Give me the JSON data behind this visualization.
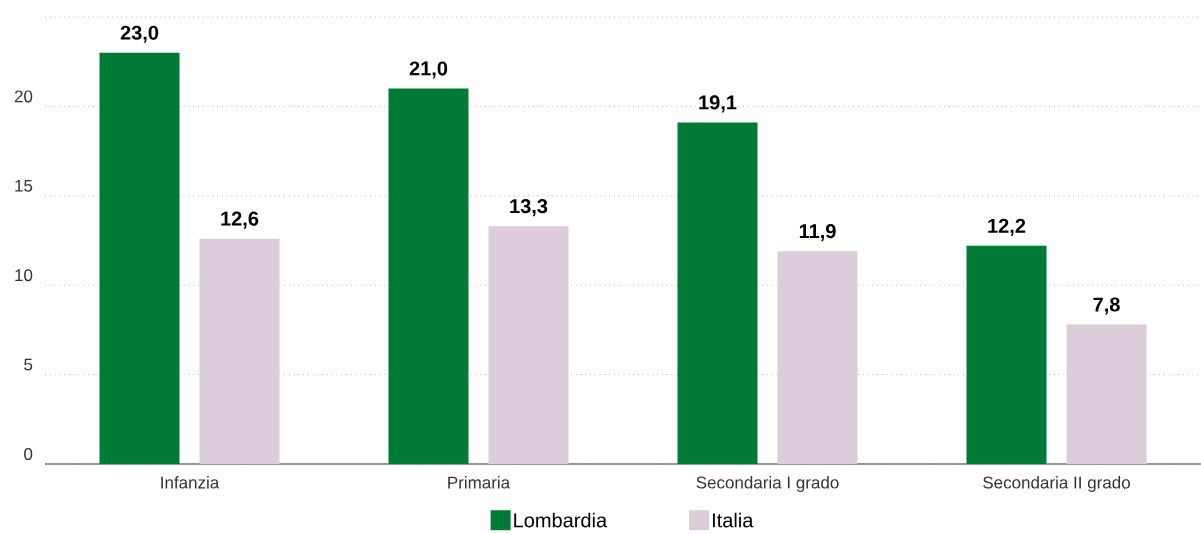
{
  "chart_data": {
    "type": "bar",
    "categories": [
      "Infanzia",
      "Primaria",
      "Secondaria I grado",
      "Secondaria II grado"
    ],
    "series": [
      {
        "name": "Lombardia",
        "color": "#007a37",
        "values": [
          23.0,
          21.0,
          19.1,
          12.2
        ],
        "value_labels": [
          "23,0",
          "21,0",
          "19,1",
          "12,2"
        ]
      },
      {
        "name": "Italia",
        "color": "#dccbd8",
        "values": [
          12.6,
          13.3,
          11.9,
          7.8
        ],
        "value_labels": [
          "12,6",
          "13,3",
          "11,9",
          "7,8"
        ]
      }
    ],
    "ylim": [
      0,
      25
    ],
    "yticks": [
      0,
      5,
      10,
      15,
      20,
      {
        "value": 25,
        "label": null
      }
    ],
    "grid": "y",
    "legend": "bottom"
  }
}
